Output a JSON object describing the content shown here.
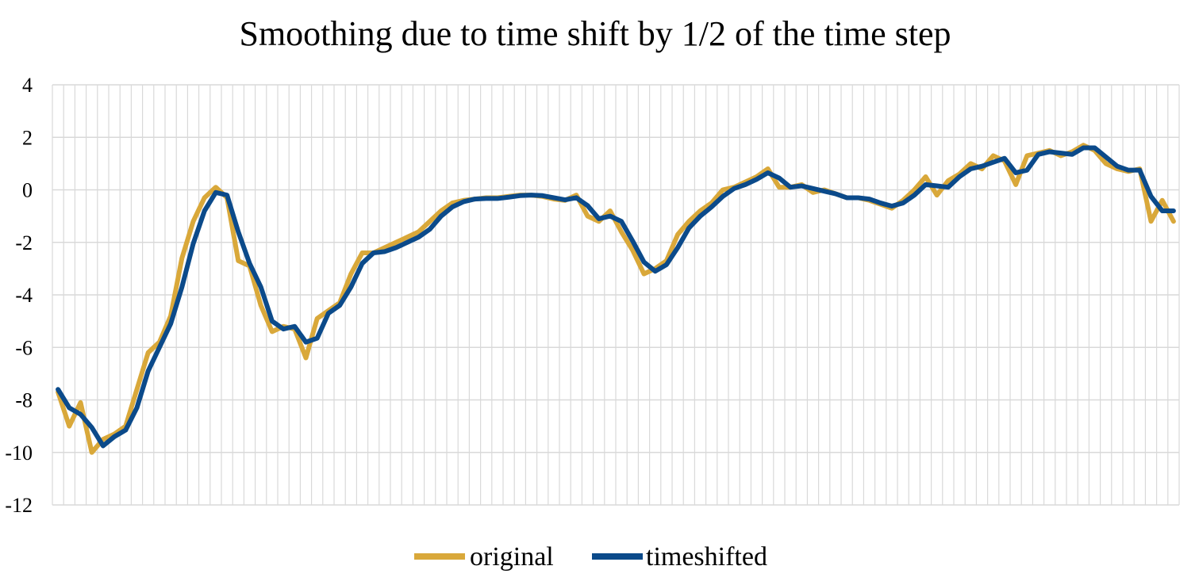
{
  "chart_data": {
    "type": "line",
    "title": "Smoothing due to time shift by 1/2 of the time step",
    "xlabel": "",
    "ylabel": "",
    "ylim": [
      -12,
      4
    ],
    "y_ticks": [
      4,
      2,
      0,
      -2,
      -4,
      -6,
      -8,
      -10,
      -12
    ],
    "x_count": 100,
    "grid": true,
    "legend": "bottom",
    "series": [
      {
        "name": "original",
        "color": "#D9A83A",
        "values": [
          -7.7,
          -9.0,
          -8.1,
          -10.0,
          -9.5,
          -9.3,
          -9.0,
          -7.6,
          -6.2,
          -5.8,
          -4.8,
          -2.6,
          -1.2,
          -0.3,
          0.1,
          -0.3,
          -2.7,
          -2.9,
          -4.4,
          -5.4,
          -5.2,
          -5.3,
          -6.4,
          -4.9,
          -4.6,
          -4.3,
          -3.2,
          -2.4,
          -2.4,
          -2.2,
          -2.0,
          -1.8,
          -1.6,
          -1.2,
          -0.8,
          -0.5,
          -0.4,
          -0.35,
          -0.3,
          -0.3,
          -0.25,
          -0.2,
          -0.2,
          -0.25,
          -0.35,
          -0.4,
          -0.2,
          -1.0,
          -1.2,
          -0.8,
          -1.6,
          -2.3,
          -3.2,
          -3.0,
          -2.7,
          -1.7,
          -1.2,
          -0.8,
          -0.5,
          0.0,
          0.1,
          0.3,
          0.5,
          0.8,
          0.1,
          0.1,
          0.2,
          -0.1,
          0.0,
          -0.15,
          -0.3,
          -0.3,
          -0.4,
          -0.55,
          -0.7,
          -0.4,
          0.0,
          0.5,
          -0.2,
          0.35,
          0.6,
          1.0,
          0.8,
          1.3,
          1.1,
          0.2,
          1.3,
          1.4,
          1.5,
          1.3,
          1.45,
          1.7,
          1.5,
          1.0,
          0.8,
          0.7,
          0.8,
          -1.2,
          -0.4,
          -1.2
        ]
      },
      {
        "name": "timeshifted",
        "color": "#0B4A8A",
        "values": [
          -7.6,
          -8.3,
          -8.55,
          -9.05,
          -9.75,
          -9.4,
          -9.15,
          -8.3,
          -6.9,
          -6.0,
          -5.1,
          -3.7,
          -2.05,
          -0.8,
          -0.1,
          -0.2,
          -1.6,
          -2.8,
          -3.7,
          -5.0,
          -5.3,
          -5.2,
          -5.8,
          -5.65,
          -4.7,
          -4.4,
          -3.7,
          -2.8,
          -2.4,
          -2.35,
          -2.2,
          -2.0,
          -1.8,
          -1.5,
          -1.0,
          -0.65,
          -0.45,
          -0.35,
          -0.33,
          -0.33,
          -0.28,
          -0.22,
          -0.2,
          -0.22,
          -0.3,
          -0.38,
          -0.3,
          -0.6,
          -1.1,
          -1.0,
          -1.2,
          -1.95,
          -2.75,
          -3.1,
          -2.85,
          -2.2,
          -1.45,
          -1.0,
          -0.65,
          -0.25,
          0.05,
          0.2,
          0.4,
          0.65,
          0.45,
          0.1,
          0.15,
          0.05,
          -0.05,
          -0.15,
          -0.3,
          -0.3,
          -0.35,
          -0.5,
          -0.62,
          -0.5,
          -0.2,
          0.2,
          0.15,
          0.1,
          0.5,
          0.8,
          0.9,
          1.05,
          1.2,
          0.65,
          0.75,
          1.35,
          1.45,
          1.4,
          1.35,
          1.6,
          1.6,
          1.25,
          0.9,
          0.75,
          0.75,
          -0.25,
          -0.8,
          -0.8
        ]
      }
    ]
  }
}
